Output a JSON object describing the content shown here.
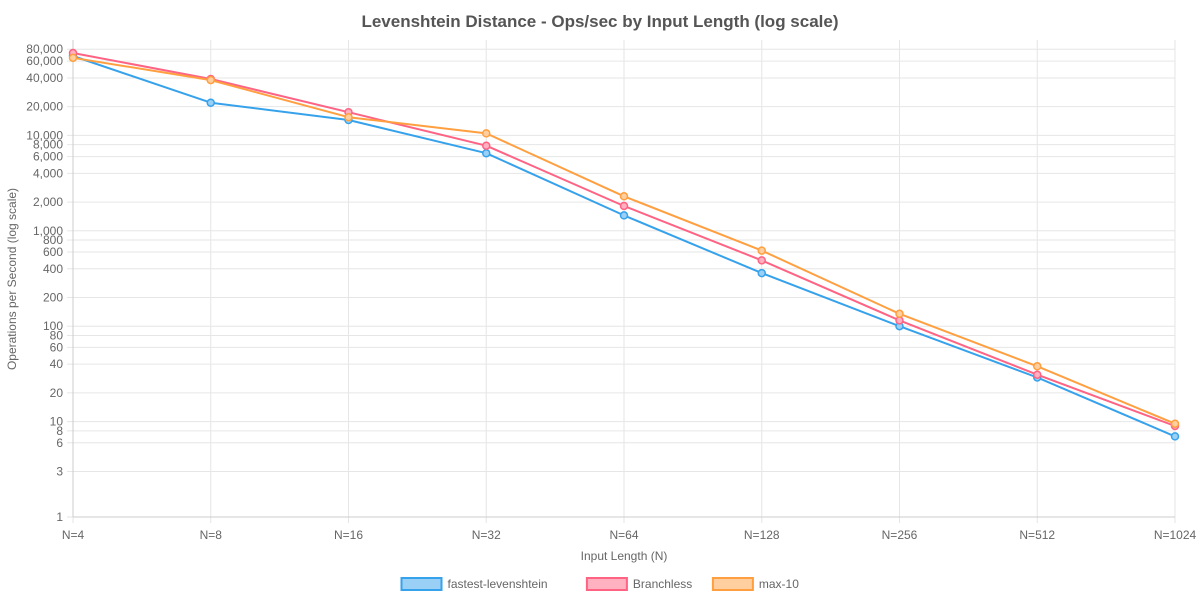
{
  "chart_data": {
    "type": "line",
    "title": "Levenshtein Distance - Ops/sec by Input Length (log scale)",
    "xlabel": "Input Length (N)",
    "ylabel": "Operations per Second (log scale)",
    "y_scale": "log",
    "ylim": [
      1,
      100000
    ],
    "grid": true,
    "legend_position": "bottom",
    "categories": [
      "N=4",
      "N=8",
      "N=16",
      "N=32",
      "N=64",
      "N=128",
      "N=256",
      "N=512",
      "N=1024"
    ],
    "y_ticks": [
      {
        "value": 1,
        "label": "1"
      },
      {
        "value": 3,
        "label": "3"
      },
      {
        "value": 6,
        "label": "6"
      },
      {
        "value": 8,
        "label": "8"
      },
      {
        "value": 10,
        "label": "10"
      },
      {
        "value": 20,
        "label": "20"
      },
      {
        "value": 40,
        "label": "40"
      },
      {
        "value": 60,
        "label": "60"
      },
      {
        "value": 80,
        "label": "80"
      },
      {
        "value": 100,
        "label": "100"
      },
      {
        "value": 200,
        "label": "200"
      },
      {
        "value": 400,
        "label": "400"
      },
      {
        "value": 600,
        "label": "600"
      },
      {
        "value": 800,
        "label": "800"
      },
      {
        "value": 1000,
        "label": "1,000"
      },
      {
        "value": 2000,
        "label": "2,000"
      },
      {
        "value": 4000,
        "label": "4,000"
      },
      {
        "value": 6000,
        "label": "6,000"
      },
      {
        "value": 8000,
        "label": "8,000"
      },
      {
        "value": 10000,
        "label": "10,000"
      },
      {
        "value": 20000,
        "label": "20,000"
      },
      {
        "value": 40000,
        "label": "40,000"
      },
      {
        "value": 60000,
        "label": "60,000"
      },
      {
        "value": 80000,
        "label": "80,000"
      }
    ],
    "series": [
      {
        "name": "fastest-levenshtein",
        "color": "#36a2eb",
        "fill": "#9ad0f5",
        "values": [
          68000,
          22000,
          14500,
          6500,
          1450,
          360,
          100,
          29,
          7
        ]
      },
      {
        "name": "Branchless",
        "color": "#ff6384",
        "fill": "#ffb1c1",
        "values": [
          73000,
          39000,
          17500,
          7800,
          1820,
          490,
          115,
          31,
          9
        ]
      },
      {
        "name": "max-10",
        "color": "#ff9f40",
        "fill": "#ffcf9f",
        "values": [
          65000,
          38000,
          15500,
          10500,
          2300,
          620,
          135,
          38,
          9.5
        ]
      }
    ]
  }
}
